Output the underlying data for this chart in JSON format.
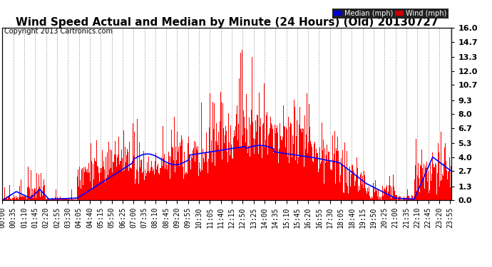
{
  "title": "Wind Speed Actual and Median by Minute (24 Hours) (Old) 20130727",
  "copyright": "Copyright 2013 Cartronics.com",
  "ylabel_right_ticks": [
    0.0,
    1.3,
    2.7,
    4.0,
    5.3,
    6.7,
    8.0,
    9.3,
    10.7,
    12.0,
    13.3,
    14.7,
    16.0
  ],
  "ylim": [
    0.0,
    16.0
  ],
  "bar_color": "#ff0000",
  "line_color": "#0000ff",
  "bg_color": "#ffffff",
  "grid_color": "#aaaaaa",
  "legend_blue": "#0000cc",
  "legend_red": "#cc0000",
  "title_fontsize": 11,
  "copyright_fontsize": 7,
  "tick_fontsize": 7,
  "x_tick_step": 35
}
